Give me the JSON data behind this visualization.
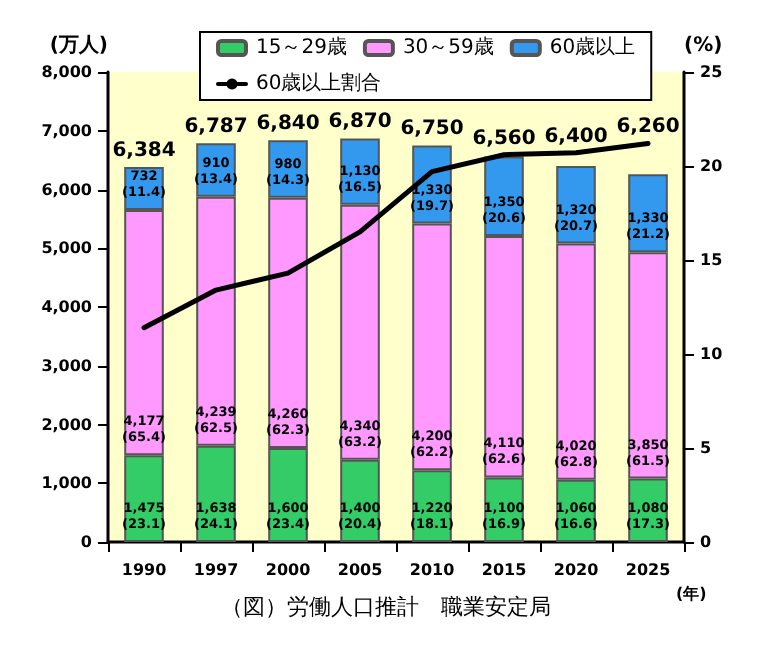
{
  "chart_data": {
    "type": "bar",
    "stacked": true,
    "categories": [
      "1990",
      "1997",
      "2000",
      "2005",
      "2010",
      "2015",
      "2020",
      "2025"
    ],
    "xlabel": "(年)",
    "ylabel": "(万人)",
    "y2label": "(%)",
    "ylim": [
      0,
      8000
    ],
    "yticks": [
      0,
      {
        "value": 1000,
        "label": "1,000"
      },
      {
        "value": 2000,
        "label": "2,000"
      },
      {
        "value": 3000,
        "label": "3,000"
      },
      {
        "value": 4000,
        "label": "4,000"
      },
      {
        "value": 5000,
        "label": "5,000"
      },
      {
        "value": 6000,
        "label": "6,000"
      },
      {
        "value": 7000,
        "label": "7,000"
      },
      {
        "value": 8000,
        "label": "8,000"
      }
    ],
    "y2lim": [
      0,
      25
    ],
    "y2ticks": [
      0,
      5,
      10,
      15,
      20,
      25
    ],
    "series": [
      {
        "name": "15～29歳",
        "color": "#33cc66",
        "values": [
          1475,
          1638,
          1600,
          1400,
          1220,
          1100,
          1060,
          1080
        ],
        "value_labels": [
          "1,475\n(23.1)",
          "1,638\n(24.1)",
          "1,600\n(23.4)",
          "1,400\n(20.4)",
          "1,220\n(18.1)",
          "1,100\n(16.9)",
          "1,060\n(16.6)",
          "1,080\n(17.3)"
        ]
      },
      {
        "name": "30～59歳",
        "color": "#ff99ff",
        "values": [
          4177,
          4239,
          4260,
          4340,
          4200,
          4110,
          4020,
          3850
        ],
        "value_labels": [
          "4,177\n(65.4)",
          "4,239\n(62.5)",
          "4,260\n(62.3)",
          "4,340\n(63.2)",
          "4,200\n(62.2)",
          "4,110\n(62.6)",
          "4,020\n(62.8)",
          "3,850\n(61.5)"
        ]
      },
      {
        "name": "60歳以上",
        "color": "#3399ee",
        "values": [
          732,
          910,
          980,
          1130,
          1330,
          1350,
          1320,
          1330
        ],
        "value_labels": [
          "732\n(11.4)",
          "910\n(13.4)",
          "980\n(14.3)",
          "1,130\n(16.5)",
          "1,330\n(19.7)",
          "1,350\n(20.6)",
          "1,320\n(20.7)",
          "1,330\n(21.2)"
        ]
      },
      {
        "name": "60歳以上割合",
        "type": "line",
        "axis": "y2",
        "color": "#000000",
        "values": [
          11.4,
          13.4,
          14.3,
          16.5,
          19.7,
          20.6,
          20.7,
          21.2
        ]
      }
    ],
    "totals": [
      "6,384",
      "6,787",
      "6,840",
      "6,870",
      "6,750",
      "6,560",
      "6,400",
      "6,260"
    ],
    "marker": "none",
    "line_style": "solid",
    "grid": false,
    "legend": "top",
    "annotations": [
      "（図）労働人口推計　職業安定局"
    ]
  }
}
